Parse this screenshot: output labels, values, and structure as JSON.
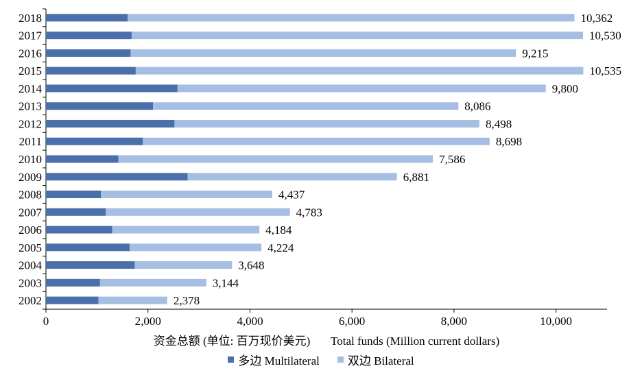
{
  "chart_data": {
    "type": "bar",
    "orientation": "horizontal",
    "stacked": true,
    "categories": [
      "2018",
      "2017",
      "2016",
      "2015",
      "2014",
      "2013",
      "2012",
      "2011",
      "2010",
      "2009",
      "2008",
      "2007",
      "2006",
      "2005",
      "2004",
      "2003",
      "2002"
    ],
    "series": [
      {
        "name": "多边 Multilateral",
        "color": "#4a6faa",
        "values": [
          1600,
          1680,
          1660,
          1760,
          2580,
          2100,
          2520,
          1900,
          1420,
          2780,
          1080,
          1170,
          1300,
          1640,
          1740,
          1060,
          1030
        ]
      },
      {
        "name": "双边 Bilateral",
        "color": "#a6bee2",
        "values": [
          8762,
          8850,
          7555,
          8775,
          7220,
          5986,
          5978,
          6798,
          6166,
          4101,
          3357,
          3613,
          2884,
          2584,
          1908,
          2084,
          1348
        ]
      }
    ],
    "totals": [
      10362,
      10530,
      9215,
      10535,
      9800,
      8086,
      8498,
      8698,
      7586,
      6881,
      4437,
      4783,
      4184,
      4224,
      3648,
      3144,
      2378
    ],
    "total_labels": [
      "10,362",
      "10,530",
      "9,215",
      "10,535",
      "9,800",
      "8,086",
      "8,498",
      "8,698",
      "7,586",
      "6,881",
      "4,437",
      "4,783",
      "4,184",
      "4,224",
      "3,648",
      "3,144",
      "2,378"
    ],
    "xlim": [
      0,
      11000
    ],
    "xticks": [
      0,
      2000,
      4000,
      6000,
      8000,
      10000
    ],
    "xtick_labels": [
      "0",
      "2,000",
      "4,000",
      "6,000",
      "8,000",
      "10,000"
    ],
    "xlabel": "资金总额 (单位: 百万现价美元)       Total funds (Million current dollars)",
    "ylabel": "",
    "title": "",
    "legend_position": "bottom",
    "grid": false
  }
}
